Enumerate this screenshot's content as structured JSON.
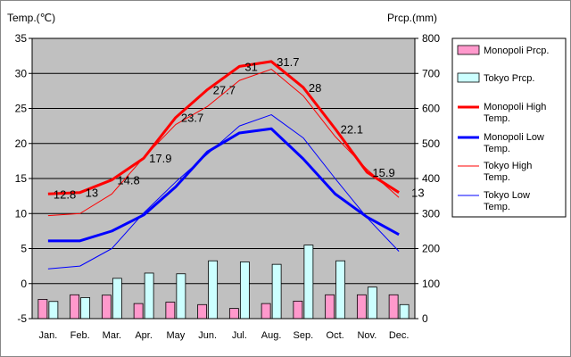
{
  "chart_data": {
    "type": "bar+line",
    "left_axis": {
      "title": "Temp.(℃)",
      "min": -5,
      "max": 35,
      "step": 5,
      "ticks": [
        "35",
        "30",
        "25",
        "20",
        "15",
        "10",
        "5",
        "0",
        "-5"
      ]
    },
    "right_axis": {
      "title": "Prcp.(mm)",
      "min": 0,
      "max": 800,
      "step": 100,
      "ticks": [
        "800",
        "700",
        "600",
        "500",
        "400",
        "300",
        "200",
        "100",
        "0"
      ]
    },
    "categories": [
      "Jan.",
      "Feb.",
      "Mar.",
      "Apr.",
      "May",
      "Jun.",
      "Jul.",
      "Aug.",
      "Sep.",
      "Oct.",
      "Nov.",
      "Dec."
    ],
    "bar_series": [
      {
        "name": "Monopoli Prcp.",
        "color": "#ff99cc",
        "values": [
          55,
          68,
          67,
          43,
          47,
          40,
          29,
          43,
          50,
          68,
          68,
          68
        ]
      },
      {
        "name": "Tokyo Prcp.",
        "color": "#ccffff",
        "values": [
          49,
          60,
          115,
          130,
          128,
          165,
          162,
          155,
          210,
          165,
          90,
          40
        ]
      }
    ],
    "line_series": [
      {
        "name": "Monopoli High Temp.",
        "color": "#ff0000",
        "width": "thick",
        "values": [
          12.8,
          13,
          14.8,
          17.9,
          23.7,
          27.7,
          31,
          31.7,
          28,
          22.1,
          15.9,
          13
        ],
        "labels": [
          "12.8",
          "13",
          "14.8",
          "17.9",
          "23.7",
          "27.7",
          "31",
          "31.7",
          "28",
          "22.1",
          "15.9",
          "13"
        ]
      },
      {
        "name": "Monopoli Low Temp.",
        "color": "#0000ff",
        "width": "thick",
        "values": [
          6.1,
          6.1,
          7.5,
          9.8,
          13.8,
          18.8,
          21.5,
          22.1,
          17.8,
          12.8,
          9.5,
          7.0
        ]
      },
      {
        "name": "Tokyo High Temp.",
        "color": "#ff0000",
        "width": "thin",
        "values": [
          9.7,
          10,
          12.8,
          18,
          22.7,
          25.3,
          29,
          30.6,
          26.8,
          21,
          16.3,
          12.3
        ]
      },
      {
        "name": "Tokyo Low Temp.",
        "color": "#0000ff",
        "width": "thin",
        "values": [
          2.1,
          2.5,
          5,
          10.1,
          14.5,
          18.5,
          22.5,
          24.1,
          20.8,
          15,
          9.4,
          4.6
        ]
      }
    ],
    "legend": [
      {
        "label": "Monopoli Prcp.",
        "kind": "bar",
        "series": 0
      },
      {
        "label": "Tokyo Prcp.",
        "kind": "bar",
        "series": 1
      },
      {
        "label_lines": [
          "Monopoli High",
          "Temp."
        ],
        "kind": "line",
        "series": 0
      },
      {
        "label_lines": [
          "Monopoli Low",
          "Temp."
        ],
        "kind": "line",
        "series": 1
      },
      {
        "label_lines": [
          "Tokyo High",
          "Temp."
        ],
        "kind": "line",
        "series": 2
      },
      {
        "label_lines": [
          "Tokyo Low",
          "Temp."
        ],
        "kind": "line",
        "series": 3
      }
    ],
    "legend_position": "right"
  }
}
